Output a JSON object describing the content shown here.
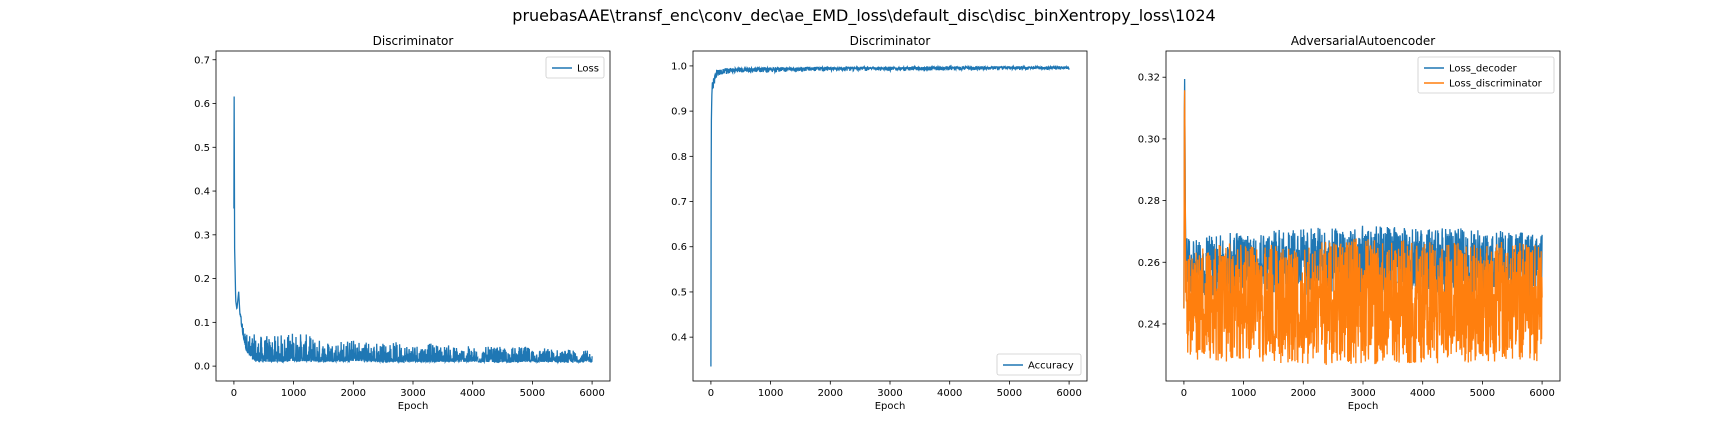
{
  "suptitle": "pruebasAAE\\transf_enc\\conv_dec\\ae_EMD_loss\\default_disc\\disc_binXentropy_loss\\1024",
  "chart_data": [
    {
      "type": "line",
      "title": "Discriminator",
      "xlabel": "Epoch",
      "ylabel": "",
      "xlim": [
        -300,
        6300
      ],
      "ylim": [
        -0.034,
        0.72
      ],
      "xticks": [
        0,
        1000,
        2000,
        3000,
        4000,
        5000,
        6000
      ],
      "yticks": [
        0.0,
        0.1,
        0.2,
        0.3,
        0.4,
        0.5,
        0.6,
        0.7
      ],
      "ytick_labels": [
        "0.0",
        "0.1",
        "0.2",
        "0.3",
        "0.4",
        "0.5",
        "0.6",
        "0.7"
      ],
      "legend": "top-right",
      "series": [
        {
          "name": "Loss",
          "color": "#1f77b4",
          "x": [
            0,
            5,
            10,
            20,
            30,
            50,
            80,
            100,
            120,
            150,
            200,
            250,
            300,
            400,
            500,
            700,
            1000,
            1500,
            2000,
            2500,
            3000,
            3500,
            4000,
            4500,
            5000,
            5500,
            6000
          ],
          "y": [
            0.36,
            0.68,
            0.28,
            0.22,
            0.15,
            0.13,
            0.17,
            0.12,
            0.1,
            0.07,
            0.04,
            0.025,
            0.015,
            0.01,
            0.01,
            0.01,
            0.012,
            0.01,
            0.012,
            0.01,
            0.01,
            0.01,
            0.01,
            0.009,
            0.01,
            0.009,
            0.01
          ],
          "noise_max": [
            0,
            0,
            0,
            0,
            0,
            0,
            0,
            0,
            0.02,
            0.03,
            0.04,
            0.05,
            0.06,
            0.06,
            0.06,
            0.06,
            0.07,
            0.05,
            0.05,
            0.045,
            0.045,
            0.04,
            0.035,
            0.035,
            0.035,
            0.03,
            0.025
          ]
        }
      ]
    },
    {
      "type": "line",
      "title": "Discriminator",
      "xlabel": "Epoch",
      "ylabel": "",
      "xlim": [
        -300,
        6300
      ],
      "ylim": [
        0.303,
        1.033
      ],
      "xticks": [
        0,
        1000,
        2000,
        3000,
        4000,
        5000,
        6000
      ],
      "yticks": [
        0.4,
        0.5,
        0.6,
        0.7,
        0.8,
        0.9,
        1.0
      ],
      "ytick_labels": [
        "0.4",
        "0.5",
        "0.6",
        "0.7",
        "0.8",
        "0.9",
        "1.0"
      ],
      "legend": "bottom-right",
      "series": [
        {
          "name": "Accuracy",
          "color": "#1f77b4",
          "x": [
            0,
            5,
            10,
            20,
            40,
            60,
            100,
            200,
            400,
            1000,
            2000,
            3000,
            4000,
            5000,
            6000
          ],
          "y": [
            0.335,
            0.85,
            0.9,
            0.96,
            0.97,
            0.98,
            0.99,
            0.993,
            0.995,
            0.996,
            0.997,
            0.997,
            0.998,
            0.998,
            0.998
          ],
          "noise_max": [
            0,
            0,
            0,
            0.02,
            0.02,
            0.02,
            0.015,
            0.012,
            0.01,
            0.01,
            0.008,
            0.008,
            0.008,
            0.006,
            0.006
          ]
        }
      ]
    },
    {
      "type": "line",
      "title": "AdversarialAutoencoder",
      "xlabel": "Epoch",
      "ylabel": "",
      "xlim": [
        -300,
        6300
      ],
      "ylim": [
        0.2215,
        0.3285
      ],
      "xticks": [
        0,
        1000,
        2000,
        3000,
        4000,
        5000,
        6000
      ],
      "yticks": [
        0.24,
        0.26,
        0.28,
        0.3,
        0.32
      ],
      "ytick_labels": [
        "0.24",
        "0.26",
        "0.28",
        "0.30",
        "0.32"
      ],
      "legend": "top-right",
      "series": [
        {
          "name": "Loss_decoder",
          "color": "#1f77b4",
          "x": [
            0,
            10,
            30,
            60,
            100,
            500,
            1000,
            2000,
            3000,
            4000,
            5000,
            6000
          ],
          "y": [
            0.245,
            0.326,
            0.26,
            0.262,
            0.258,
            0.259,
            0.26,
            0.26,
            0.26,
            0.261,
            0.26,
            0.259
          ],
          "noise_max": [
            0,
            0,
            0.005,
            0.007,
            0.009,
            0.01,
            0.01,
            0.011,
            0.012,
            0.01,
            0.011,
            0.01
          ]
        },
        {
          "name": "Loss_discriminator",
          "color": "#ff7f0e",
          "x": [
            0,
            10,
            30,
            60,
            100,
            500,
            1000,
            2000,
            3000,
            4000,
            5000,
            6000
          ],
          "y": [
            0.245,
            0.324,
            0.248,
            0.246,
            0.246,
            0.247,
            0.247,
            0.247,
            0.247,
            0.247,
            0.247,
            0.247
          ],
          "noise_max": [
            0,
            0,
            0.012,
            0.016,
            0.018,
            0.019,
            0.02,
            0.02,
            0.021,
            0.02,
            0.02,
            0.019
          ]
        }
      ]
    }
  ]
}
